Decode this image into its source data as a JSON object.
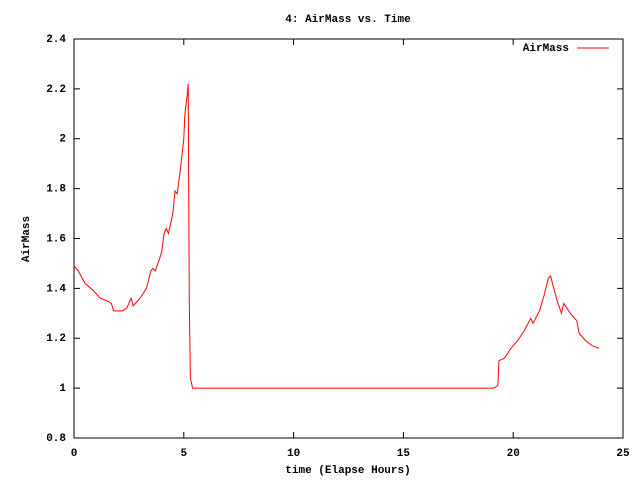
{
  "chart_data": {
    "type": "line",
    "title": "4: AirMass vs. Time",
    "x_label": "time (Elapse Hours)",
    "y_label": "AirMass",
    "x": [
      0,
      0.2,
      0.5,
      0.9,
      1.2,
      1.5,
      1.7,
      1.8,
      2.2,
      2.4,
      2.6,
      2.7,
      3.0,
      3.3,
      3.5,
      3.6,
      3.7,
      3.9,
      4.0,
      4.1,
      4.2,
      4.3,
      4.5,
      4.6,
      4.7,
      4.85,
      5.0,
      5.05,
      5.15,
      5.2,
      5.25,
      5.3,
      5.4,
      19.1,
      19.3,
      19.35,
      19.6,
      19.9,
      20.2,
      20.5,
      20.8,
      20.9,
      21.2,
      21.4,
      21.6,
      21.7,
      21.85,
      22.0,
      22.2,
      22.3,
      22.6,
      22.9,
      23.0,
      23.3,
      23.6,
      23.9
    ],
    "series": [
      {
        "name": "AirMass",
        "color": "#ff0000",
        "values": [
          1.49,
          1.47,
          1.42,
          1.39,
          1.36,
          1.35,
          1.34,
          1.31,
          1.31,
          1.32,
          1.36,
          1.33,
          1.36,
          1.4,
          1.47,
          1.48,
          1.47,
          1.52,
          1.55,
          1.62,
          1.64,
          1.62,
          1.7,
          1.79,
          1.78,
          1.88,
          2.0,
          2.1,
          2.17,
          2.22,
          1.35,
          1.04,
          1.0,
          1.0,
          1.01,
          1.11,
          1.12,
          1.16,
          1.19,
          1.23,
          1.28,
          1.26,
          1.31,
          1.37,
          1.44,
          1.45,
          1.4,
          1.35,
          1.3,
          1.34,
          1.3,
          1.27,
          1.22,
          1.19,
          1.17,
          1.16
        ]
      }
    ],
    "xlim": [
      0,
      25
    ],
    "xticks": [
      0,
      5,
      10,
      15,
      20,
      25
    ],
    "ylim": [
      0.8,
      2.4
    ],
    "yticks": [
      0.8,
      1,
      1.2,
      1.4,
      1.6,
      1.8,
      2,
      2.2,
      2.4
    ],
    "legend": "top-right",
    "grid": false
  }
}
